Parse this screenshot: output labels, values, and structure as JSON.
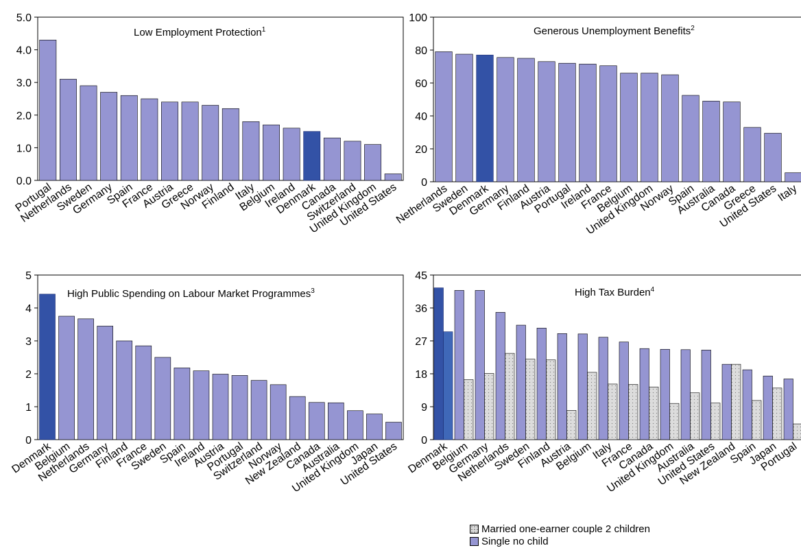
{
  "colors": {
    "bar": "#9595d2",
    "highlight": "#3352a6",
    "highlight_edge": "#1a2a70",
    "married": "#dcdcdc",
    "frame": "#000000"
  },
  "legend": {
    "married_label": "Married one-earner couple 2 children",
    "single_label": "Single no child"
  },
  "chart_data": [
    {
      "type": "bar",
      "title": "Low Employment Protection",
      "title_sup": "1",
      "categories": [
        "Portugal",
        "Netherlands",
        "Sweden",
        "Germany",
        "Spain",
        "France",
        "Austria",
        "Greece",
        "Norway",
        "Finland",
        "Italy",
        "Belgium",
        "Ireland",
        "Denmark",
        "Canada",
        "Switzerland",
        "United Kingdom",
        "United States"
      ],
      "values": [
        4.3,
        3.1,
        2.9,
        2.7,
        2.6,
        2.5,
        2.4,
        2.4,
        2.3,
        2.2,
        1.8,
        1.7,
        1.6,
        1.5,
        1.3,
        1.2,
        1.1,
        0.2
      ],
      "highlight": "Denmark",
      "ylim": [
        0,
        5
      ],
      "yticks": [
        "0.0",
        "1.0",
        "2.0",
        "3.0",
        "4.0",
        "5.0"
      ],
      "grid": false
    },
    {
      "type": "bar",
      "title": "Generous Unemployment Benefits",
      "title_sup": "2",
      "categories": [
        "Netherlands",
        "Sweden",
        "Denmark",
        "Germany",
        "Finland",
        "Austria",
        "Portugal",
        "Ireland",
        "France",
        "Belgium",
        "United Kingdom",
        "Norway",
        "Spain",
        "Australia",
        "Canada",
        "Greece",
        "United States",
        "Italy"
      ],
      "values": [
        79,
        77.5,
        77,
        75.5,
        75,
        73,
        72,
        71.5,
        70.5,
        66,
        66,
        65,
        52.5,
        49,
        48.5,
        33,
        29.5,
        5.5
      ],
      "highlight": "Denmark",
      "ylim": [
        0,
        100
      ],
      "yticks": [
        "0",
        "20",
        "40",
        "60",
        "80",
        "100"
      ],
      "grid": false
    },
    {
      "type": "bar",
      "title": "High Public Spending on Labour Market Programmes",
      "title_sup": "3",
      "categories": [
        "Denmark",
        "Belgium",
        "Netherlands",
        "Germany",
        "Finland",
        "France",
        "Sweden",
        "Spain",
        "Ireland",
        "Austria",
        "Portugal",
        "Switzerland",
        "Norway",
        "New Zealand",
        "Canada",
        "Australia",
        "United Kingdom",
        "Japan",
        "United States"
      ],
      "values": [
        4.42,
        3.75,
        3.67,
        3.45,
        3.0,
        2.85,
        2.5,
        2.18,
        2.09,
        1.99,
        1.95,
        1.8,
        1.67,
        1.31,
        1.13,
        1.12,
        0.88,
        0.78,
        0.53
      ],
      "highlight": "Denmark",
      "ylim": [
        0,
        5
      ],
      "yticks": [
        "0",
        "1",
        "2",
        "3",
        "4",
        "5"
      ],
      "grid": false
    },
    {
      "type": "bar",
      "title": "High Tax Burden",
      "title_sup": "4",
      "categories": [
        "Denmark",
        "Belgium",
        "Germany",
        "Netherlands",
        "Sweden",
        "Finland",
        "Austria",
        "Belgium",
        "Italy",
        "France",
        "Canada",
        "United Kingdom",
        "Australia",
        "United States",
        "New Zealand",
        "Spain",
        "Japan",
        "Portugal"
      ],
      "series": [
        {
          "name": "Single no child",
          "values": [
            41.5,
            40.8,
            40.8,
            34.8,
            31.3,
            30.5,
            29,
            28.9,
            28,
            26.7,
            24.9,
            24.7,
            24.6,
            24.5,
            20.6,
            19.1,
            17.4,
            16.6
          ]
        },
        {
          "name": "Married one-earner couple 2 children",
          "values": [
            29.5,
            16.4,
            18.1,
            23.6,
            22,
            21.8,
            8,
            18.4,
            15.2,
            15.1,
            14.4,
            9.9,
            12.8,
            10,
            20.6,
            10.7,
            14.1,
            4.3
          ]
        }
      ],
      "highlight": "Denmark",
      "ylim": [
        0,
        45
      ],
      "yticks": [
        "0",
        "9",
        "18",
        "27",
        "36",
        "45"
      ],
      "grid": false
    }
  ]
}
